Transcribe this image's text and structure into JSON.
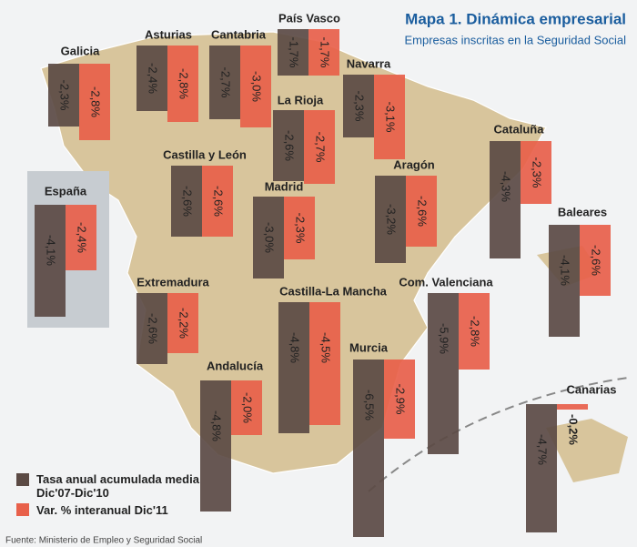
{
  "chart_data": {
    "type": "map-bars",
    "title": "Mapa 1. Dinámica empresarial",
    "subtitle": "Empresas inscritas en la Seguridad Social",
    "source": "Fuente: Ministerio de Empleo y Seguridad Social",
    "categories": [
      "Galicia",
      "Asturias",
      "Cantabria",
      "País Vasco",
      "Navarra",
      "La Rioja",
      "Castilla y León",
      "Madrid",
      "Aragón",
      "Cataluña",
      "Baleares",
      "España",
      "Extremadura",
      "Castilla-La Mancha",
      "Com. Valenciana",
      "Andalucía",
      "Murcia",
      "Canarias"
    ],
    "series": [
      {
        "name": "Tasa anual acumulada media Dic'07-Dic'10",
        "color": "#5b4a44",
        "values": [
          -2.3,
          -2.4,
          -2.7,
          -1.7,
          -2.3,
          -2.6,
          -2.6,
          -3.0,
          -3.2,
          -4.3,
          -4.1,
          -4.1,
          -2.6,
          -4.8,
          -5.9,
          -4.8,
          -6.5,
          -4.7
        ],
        "value_labels": [
          "-2,3%",
          "-2,4%",
          "-2,7%",
          "-1,7%",
          "-2,3%",
          "-2,6%",
          "-2,6%",
          "-3,0%",
          "-3,2%",
          "-4,3%",
          "-4,1%",
          "-4,1%",
          "-2,6%",
          "-4,8%",
          "-5,9%",
          "-4,8%",
          "-6,5%",
          "-4,7%"
        ]
      },
      {
        "name": "Var. % interanual Dic'11",
        "color": "#e8604a",
        "values": [
          -2.8,
          -2.8,
          -3.0,
          -1.7,
          -3.1,
          -2.7,
          -2.6,
          -2.3,
          -2.6,
          -2.3,
          -2.6,
          -2.4,
          -2.2,
          -4.5,
          -2.8,
          -2.0,
          -2.9,
          -0.2
        ],
        "value_labels": [
          "-2,8%",
          "-2,8%",
          "-3,0%",
          "-1,7%",
          "-3,1%",
          "-2,7%",
          "-2,6%",
          "-2,3%",
          "-2,6%",
          "-2,3%",
          "-2,6%",
          "-2,4%",
          "-2,2%",
          "-4,5%",
          "-2,8%",
          "-2,0%",
          "-2,9%",
          "-0,2%"
        ]
      }
    ]
  }
}
